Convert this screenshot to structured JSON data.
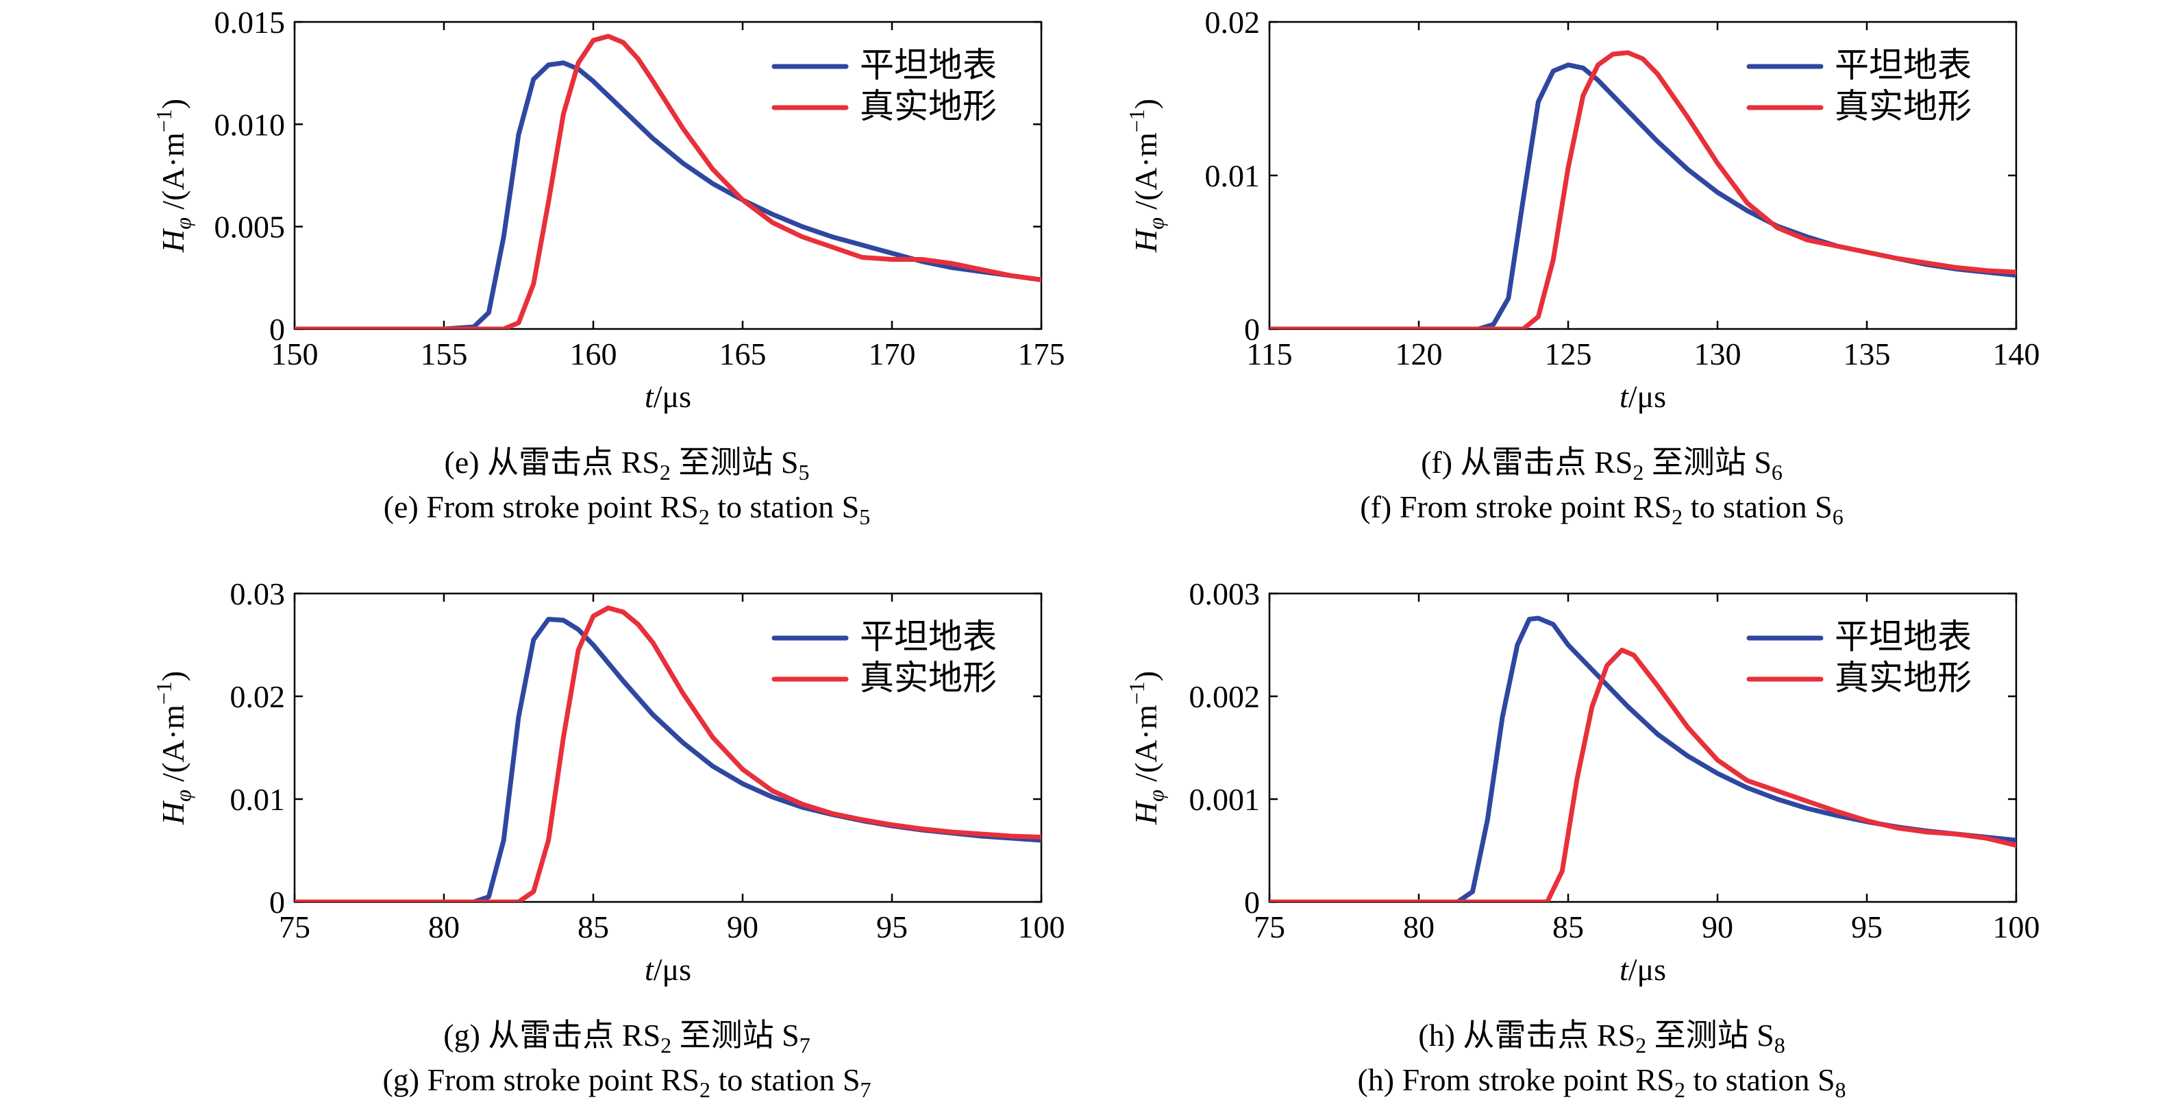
{
  "chart_data": [
    {
      "panel": "e",
      "type": "line",
      "xlabel_italic": "t",
      "xlabel_unit": "/μs",
      "ylabel_italic": "H",
      "ylabel_sub": "φ",
      "ylabel_unit_a": " /(A·m",
      "ylabel_sup": "−1",
      "ylabel_unit_b": ")",
      "xlim": [
        150,
        175
      ],
      "ylim": [
        0,
        0.015
      ],
      "xticks": [
        150,
        155,
        160,
        165,
        170,
        175
      ],
      "xtick_labels": [
        "150",
        "155",
        "160",
        "165",
        "170",
        "175"
      ],
      "yticks": [
        0,
        0.005,
        0.01,
        0.015
      ],
      "ytick_labels": [
        "0",
        "0.005",
        "0.010",
        "0.015"
      ],
      "legend": "top-right",
      "caption_cn": [
        "(e) 从雷击点 RS",
        "2",
        " 至测站 S",
        "5"
      ],
      "caption_en": [
        "(e) From stroke point RS",
        "2",
        " to station S",
        "5"
      ],
      "series": [
        {
          "name": "平坦地表",
          "color": "#2e47a0",
          "x": [
            150,
            155,
            156,
            156.5,
            157,
            157.5,
            158,
            158.5,
            159,
            159.5,
            160,
            161,
            162,
            163,
            164,
            165,
            166,
            167,
            168,
            169,
            170,
            171,
            172,
            173,
            174,
            175
          ],
          "y": [
            0,
            0,
            0.0001,
            0.0008,
            0.0045,
            0.0095,
            0.0122,
            0.0129,
            0.013,
            0.0127,
            0.0121,
            0.0107,
            0.0093,
            0.0081,
            0.0071,
            0.0063,
            0.0056,
            0.005,
            0.0045,
            0.0041,
            0.0037,
            0.0033,
            0.003,
            0.0028,
            0.0026,
            0.0024
          ]
        },
        {
          "name": "真实地形",
          "color": "#e8303a",
          "x": [
            150,
            157,
            157.5,
            158,
            158.5,
            159,
            159.5,
            160,
            160.5,
            161,
            161.5,
            162,
            163,
            164,
            165,
            166,
            167,
            168,
            169,
            170,
            171,
            172,
            173,
            174,
            175
          ],
          "y": [
            0,
            0,
            0.0003,
            0.0022,
            0.0062,
            0.0105,
            0.013,
            0.0141,
            0.0143,
            0.014,
            0.0132,
            0.0121,
            0.0098,
            0.0078,
            0.0063,
            0.0052,
            0.0045,
            0.004,
            0.0035,
            0.0034,
            0.0034,
            0.0032,
            0.0029,
            0.0026,
            0.0024
          ]
        }
      ]
    },
    {
      "panel": "f",
      "type": "line",
      "xlabel_italic": "t",
      "xlabel_unit": "/μs",
      "ylabel_italic": "H",
      "ylabel_sub": "φ",
      "ylabel_unit_a": " /(A·m",
      "ylabel_sup": "−1",
      "ylabel_unit_b": ")",
      "xlim": [
        115,
        140
      ],
      "ylim": [
        0,
        0.02
      ],
      "xticks": [
        115,
        120,
        125,
        130,
        135,
        140
      ],
      "xtick_labels": [
        "115",
        "120",
        "125",
        "130",
        "135",
        "140"
      ],
      "yticks": [
        0,
        0.01,
        0.02
      ],
      "ytick_labels": [
        "0",
        "0.01",
        "0.02"
      ],
      "legend": "top-right",
      "caption_cn": [
        "(f) 从雷击点 RS",
        "2",
        " 至测站 S",
        "6"
      ],
      "caption_en": [
        "(f) From stroke point RS",
        "2",
        " to station S",
        "6"
      ],
      "series": [
        {
          "name": "平坦地表",
          "color": "#2e47a0",
          "x": [
            115,
            122,
            122.5,
            123,
            123.5,
            124,
            124.5,
            125,
            125.5,
            126,
            127,
            128,
            129,
            130,
            131,
            132,
            133,
            134,
            135,
            136,
            137,
            138,
            139,
            140
          ],
          "y": [
            0,
            0,
            0.0003,
            0.002,
            0.0085,
            0.0148,
            0.0168,
            0.0172,
            0.017,
            0.0162,
            0.0142,
            0.0122,
            0.0104,
            0.0089,
            0.0077,
            0.0067,
            0.006,
            0.0054,
            0.005,
            0.0046,
            0.0042,
            0.0039,
            0.0037,
            0.0035
          ]
        },
        {
          "name": "真实地形",
          "color": "#e8303a",
          "x": [
            115,
            123.5,
            124,
            124.5,
            125,
            125.5,
            126,
            126.5,
            127,
            127.5,
            128,
            129,
            130,
            131,
            132,
            133,
            134,
            135,
            136,
            137,
            138,
            139,
            140
          ],
          "y": [
            0,
            0,
            0.0008,
            0.0045,
            0.0105,
            0.0152,
            0.0172,
            0.0179,
            0.018,
            0.0176,
            0.0166,
            0.0138,
            0.0108,
            0.0082,
            0.0066,
            0.0058,
            0.0054,
            0.005,
            0.0046,
            0.0043,
            0.004,
            0.0038,
            0.0037
          ]
        }
      ]
    },
    {
      "panel": "g",
      "type": "line",
      "xlabel_italic": "t",
      "xlabel_unit": "/μs",
      "ylabel_italic": "H",
      "ylabel_sub": "φ",
      "ylabel_unit_a": " /(A·m",
      "ylabel_sup": "−1",
      "ylabel_unit_b": ")",
      "xlim": [
        75,
        100
      ],
      "ylim": [
        0,
        0.03
      ],
      "xticks": [
        75,
        80,
        85,
        90,
        95,
        100
      ],
      "xtick_labels": [
        "75",
        "80",
        "85",
        "90",
        "95",
        "100"
      ],
      "yticks": [
        0,
        0.01,
        0.02,
        0.03
      ],
      "ytick_labels": [
        "0",
        "0.01",
        "0.02",
        "0.03"
      ],
      "legend": "top-right",
      "caption_cn": [
        "(g) 从雷击点 RS",
        "2",
        " 至测站 S",
        "7"
      ],
      "caption_en": [
        "(g) From stroke point RS",
        "2",
        " to station S",
        "7"
      ],
      "series": [
        {
          "name": "平坦地表",
          "color": "#2e47a0",
          "x": [
            75,
            81,
            81.5,
            82,
            82.5,
            83,
            83.5,
            84,
            84.5,
            85,
            86,
            87,
            88,
            89,
            90,
            91,
            92,
            93,
            94,
            95,
            96,
            97,
            98,
            99,
            100
          ],
          "y": [
            0,
            0,
            0.0005,
            0.006,
            0.018,
            0.0255,
            0.0275,
            0.0274,
            0.0265,
            0.025,
            0.0215,
            0.0182,
            0.0155,
            0.0132,
            0.0115,
            0.0102,
            0.0092,
            0.0085,
            0.0079,
            0.0074,
            0.007,
            0.0067,
            0.0064,
            0.0062,
            0.006
          ]
        },
        {
          "name": "真实地形",
          "color": "#e8303a",
          "x": [
            75,
            82.5,
            83,
            83.5,
            84,
            84.5,
            85,
            85.5,
            86,
            86.5,
            87,
            88,
            89,
            90,
            91,
            92,
            93,
            94,
            95,
            96,
            97,
            98,
            99,
            100
          ],
          "y": [
            0,
            0,
            0.001,
            0.006,
            0.016,
            0.0245,
            0.0278,
            0.0286,
            0.0282,
            0.027,
            0.0252,
            0.0203,
            0.016,
            0.0129,
            0.0108,
            0.0095,
            0.0086,
            0.008,
            0.0075,
            0.0071,
            0.0068,
            0.0066,
            0.0064,
            0.0063
          ]
        }
      ]
    },
    {
      "panel": "h",
      "type": "line",
      "xlabel_italic": "t",
      "xlabel_unit": "/μs",
      "ylabel_italic": "H",
      "ylabel_sub": "φ",
      "ylabel_unit_a": " /(A·m",
      "ylabel_sup": "−1",
      "ylabel_unit_b": ")",
      "xlim": [
        75,
        100
      ],
      "ylim": [
        0,
        0.003
      ],
      "xticks": [
        75,
        80,
        85,
        90,
        95,
        100
      ],
      "xtick_labels": [
        "75",
        "80",
        "85",
        "90",
        "95",
        "100"
      ],
      "yticks": [
        0,
        0.001,
        0.002,
        0.003
      ],
      "ytick_labels": [
        "0",
        "0.001",
        "0.002",
        "0.003"
      ],
      "legend": "top-right",
      "caption_cn": [
        "(h) 从雷击点 RS",
        "2",
        " 至测站 S",
        "8"
      ],
      "caption_en": [
        "(h) From stroke point RS",
        "2",
        " to station S",
        "8"
      ],
      "series": [
        {
          "name": "平坦地表",
          "color": "#2e47a0",
          "x": [
            75,
            81.3,
            81.8,
            82.3,
            82.8,
            83.3,
            83.7,
            84,
            84.5,
            85,
            86,
            87,
            88,
            89,
            90,
            91,
            92,
            93,
            94,
            95,
            96,
            97,
            98,
            99,
            100
          ],
          "y": [
            0,
            0,
            0.0001,
            0.0008,
            0.0018,
            0.0025,
            0.00275,
            0.00276,
            0.0027,
            0.0025,
            0.0022,
            0.0019,
            0.00163,
            0.00142,
            0.00125,
            0.00111,
            0.001,
            0.00091,
            0.00084,
            0.00078,
            0.00073,
            0.00069,
            0.00066,
            0.00063,
            0.0006
          ]
        },
        {
          "name": "真实地形",
          "color": "#e8303a",
          "x": [
            75,
            84.3,
            84.8,
            85.3,
            85.8,
            86.3,
            86.8,
            87.2,
            88,
            89,
            90,
            91,
            92,
            93,
            94,
            95,
            96,
            97,
            98,
            99,
            100
          ],
          "y": [
            0,
            0,
            0.0003,
            0.0012,
            0.0019,
            0.0023,
            0.00245,
            0.0024,
            0.0021,
            0.0017,
            0.00138,
            0.00118,
            0.00108,
            0.00098,
            0.00088,
            0.00079,
            0.00072,
            0.00068,
            0.00066,
            0.00062,
            0.00055
          ]
        }
      ]
    }
  ]
}
